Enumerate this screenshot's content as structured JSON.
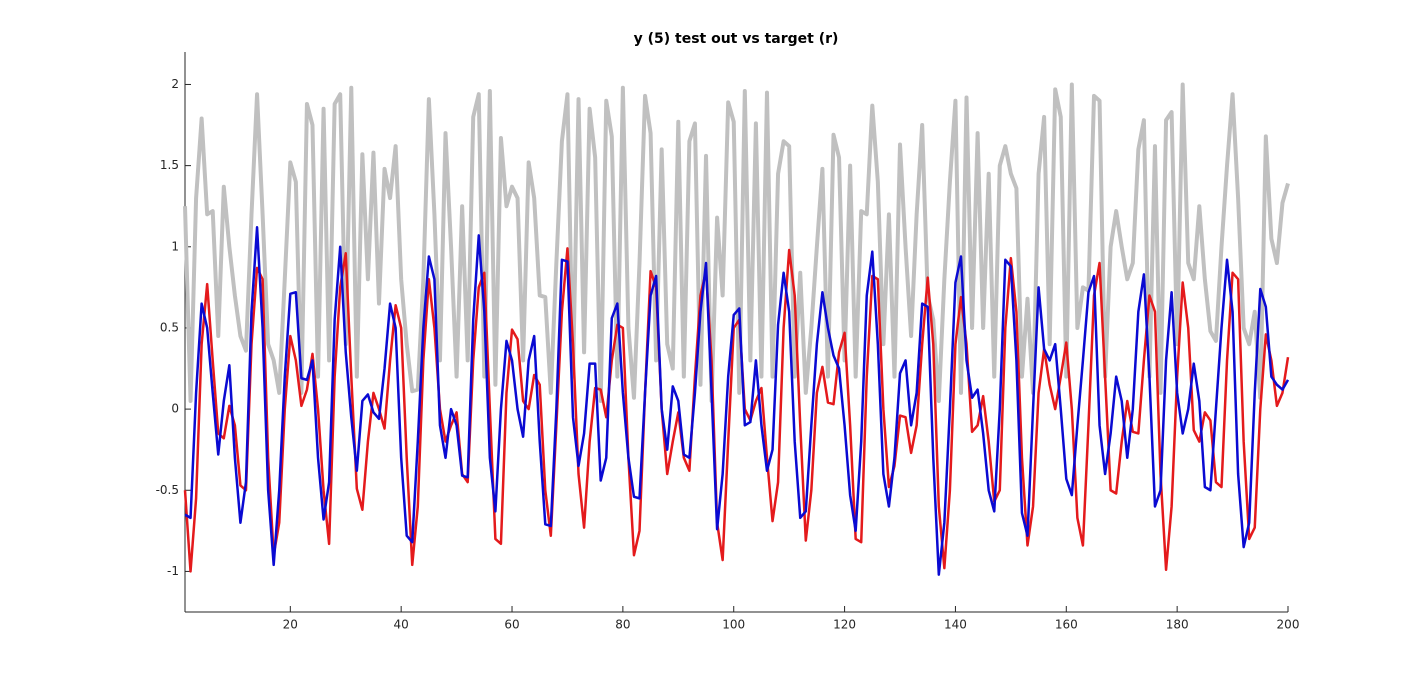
{
  "chart_data": {
    "type": "line",
    "title": "y (5) test out vs target (r)",
    "x": [
      1,
      2,
      3,
      4,
      5,
      6,
      7,
      8,
      9,
      10,
      11,
      12,
      13,
      14,
      15,
      16,
      17,
      18,
      19,
      20,
      21,
      22,
      23,
      24,
      25,
      26,
      27,
      28,
      29,
      30,
      31,
      32,
      33,
      34,
      35,
      36,
      37,
      38,
      39,
      40,
      41,
      42,
      43,
      44,
      45,
      46,
      47,
      48,
      49,
      50,
      51,
      52,
      53,
      54,
      55,
      56,
      57,
      58,
      59,
      60,
      61,
      62,
      63,
      64,
      65,
      66,
      67,
      68,
      69,
      70,
      71,
      72,
      73,
      74,
      75,
      76,
      77,
      78,
      79,
      80,
      81,
      82,
      83,
      84,
      85,
      86,
      87,
      88,
      89,
      90,
      91,
      92,
      93,
      94,
      95,
      96,
      97,
      98,
      99,
      100,
      101,
      102,
      103,
      104,
      105,
      106,
      107,
      108,
      109,
      110,
      111,
      112,
      113,
      114,
      115,
      116,
      117,
      118,
      119,
      120,
      121,
      122,
      123,
      124,
      125,
      126,
      127,
      128,
      129,
      130,
      131,
      132,
      133,
      134,
      135,
      136,
      137,
      138,
      139,
      140,
      141,
      142,
      143,
      144,
      145,
      146,
      147,
      148,
      149,
      150,
      151,
      152,
      153,
      154,
      155,
      156,
      157,
      158,
      159,
      160,
      161,
      162,
      163,
      164,
      165,
      166,
      167,
      168,
      169,
      170,
      171,
      172,
      173,
      174,
      175,
      176,
      177,
      178,
      179,
      180,
      181,
      182,
      183,
      184,
      185,
      186,
      187,
      188,
      189,
      190,
      191,
      192,
      193,
      194,
      195,
      196,
      197,
      198,
      199,
      200
    ],
    "series": [
      {
        "color": "#c0c0c0",
        "values": [
          1.25,
          0.05,
          1.3,
          1.79,
          1.2,
          1.22,
          0.45,
          1.37,
          1.0,
          0.7,
          0.45,
          0.36,
          1.2,
          1.94,
          1.2,
          0.4,
          0.3,
          0.1,
          0.8,
          1.52,
          1.4,
          0.1,
          1.88,
          1.75,
          0.2,
          1.85,
          0.3,
          1.88,
          1.94,
          0.4,
          1.98,
          0.2,
          1.57,
          0.8,
          1.58,
          0.65,
          1.48,
          1.3,
          1.62,
          0.8,
          0.4,
          0.11,
          0.12,
          0.8,
          1.91,
          1.2,
          0.3,
          1.7,
          1.0,
          0.2,
          1.25,
          0.3,
          1.8,
          1.94,
          0.2,
          1.96,
          0.15,
          1.67,
          1.25,
          1.37,
          1.3,
          0.3,
          1.52,
          1.3,
          0.7,
          0.69,
          0.1,
          0.9,
          1.65,
          1.94,
          0.2,
          1.91,
          0.35,
          1.85,
          1.55,
          0.05,
          1.9,
          1.68,
          0.2,
          1.98,
          0.5,
          0.07,
          0.9,
          1.93,
          1.7,
          0.3,
          1.6,
          0.4,
          0.25,
          1.77,
          0.2,
          1.65,
          1.76,
          0.15,
          1.56,
          0.05,
          1.18,
          0.7,
          1.89,
          1.77,
          0.1,
          1.96,
          0.3,
          1.76,
          0.2,
          1.95,
          0.2,
          1.45,
          1.65,
          1.62,
          0.2,
          0.84,
          0.1,
          0.5,
          1.0,
          1.48,
          0.2,
          1.69,
          1.55,
          0.3,
          1.5,
          0.2,
          1.22,
          1.2,
          1.87,
          1.4,
          0.4,
          1.2,
          0.2,
          1.63,
          1.0,
          0.45,
          1.2,
          1.75,
          0.7,
          0.55,
          0.05,
          0.8,
          1.4,
          1.9,
          0.1,
          1.92,
          0.5,
          1.7,
          0.5,
          1.45,
          0.2,
          1.5,
          1.62,
          1.45,
          1.36,
          0.2,
          0.68,
          0.1,
          1.45,
          1.8,
          0.4,
          1.97,
          1.8,
          0.2,
          2.0,
          0.5,
          0.75,
          0.73,
          1.93,
          1.9,
          0.2,
          1.0,
          1.22,
          1.0,
          0.8,
          0.9,
          1.6,
          1.78,
          0.2,
          1.62,
          0.1,
          1.78,
          1.83,
          0.4,
          2.0,
          0.9,
          0.8,
          1.25,
          0.8,
          0.48,
          0.42,
          1.0,
          1.5,
          1.94,
          1.3,
          0.5,
          0.4,
          0.6,
          0.07,
          1.68,
          1.05,
          0.9,
          1.27,
          1.39
        ]
      },
      {
        "color": "#e41a1c",
        "values": [
          -0.5,
          -1.0,
          -0.55,
          0.4,
          0.77,
          0.3,
          -0.15,
          -0.18,
          0.02,
          -0.1,
          -0.47,
          -0.5,
          0.4,
          0.87,
          0.8,
          -0.3,
          -0.9,
          -0.7,
          0.0,
          0.45,
          0.3,
          0.02,
          0.12,
          0.34,
          0.0,
          -0.5,
          -0.83,
          0.2,
          0.75,
          0.96,
          0.2,
          -0.49,
          -0.62,
          -0.2,
          0.1,
          0.0,
          -0.12,
          0.3,
          0.64,
          0.5,
          -0.3,
          -0.96,
          -0.6,
          0.3,
          0.8,
          0.5,
          0.0,
          -0.2,
          -0.1,
          -0.02,
          -0.4,
          -0.45,
          0.3,
          0.75,
          0.84,
          0.0,
          -0.8,
          -0.83,
          0.1,
          0.49,
          0.43,
          0.05,
          0.0,
          0.21,
          0.15,
          -0.5,
          -0.78,
          -0.1,
          0.6,
          0.99,
          0.4,
          -0.4,
          -0.73,
          -0.2,
          0.13,
          0.12,
          -0.05,
          0.3,
          0.52,
          0.5,
          -0.3,
          -0.9,
          -0.75,
          0.1,
          0.85,
          0.75,
          0.0,
          -0.4,
          -0.2,
          -0.02,
          -0.3,
          -0.38,
          0.2,
          0.7,
          0.85,
          0.3,
          -0.7,
          -0.93,
          -0.2,
          0.5,
          0.55,
          0.0,
          -0.07,
          0.05,
          0.13,
          -0.3,
          -0.69,
          -0.45,
          0.5,
          0.98,
          0.7,
          -0.1,
          -0.81,
          -0.5,
          0.1,
          0.26,
          0.04,
          0.03,
          0.35,
          0.47,
          -0.1,
          -0.8,
          -0.82,
          0.2,
          0.82,
          0.8,
          0.0,
          -0.48,
          -0.35,
          -0.04,
          -0.05,
          -0.27,
          -0.1,
          0.4,
          0.81,
          0.4,
          -0.6,
          -0.98,
          -0.5,
          0.4,
          0.69,
          0.4,
          -0.14,
          -0.1,
          0.08,
          -0.2,
          -0.57,
          -0.5,
          0.5,
          0.93,
          0.6,
          -0.3,
          -0.84,
          -0.6,
          0.1,
          0.37,
          0.15,
          0.0,
          0.2,
          0.41,
          0.0,
          -0.67,
          -0.84,
          -0.1,
          0.7,
          0.9,
          0.2,
          -0.5,
          -0.52,
          -0.2,
          0.05,
          -0.14,
          -0.15,
          0.3,
          0.7,
          0.6,
          -0.4,
          -0.99,
          -0.6,
          0.2,
          0.78,
          0.5,
          -0.13,
          -0.2,
          -0.02,
          -0.07,
          -0.45,
          -0.48,
          0.3,
          0.84,
          0.8,
          -0.2,
          -0.8,
          -0.73,
          0.0,
          0.46,
          0.3,
          0.02,
          0.1,
          0.32
        ]
      },
      {
        "color": "#0a0ad2",
        "values": [
          -0.65,
          -0.67,
          0.1,
          0.65,
          0.5,
          0.1,
          -0.28,
          0.05,
          0.27,
          -0.3,
          -0.7,
          -0.45,
          0.6,
          1.12,
          0.5,
          -0.5,
          -0.96,
          -0.5,
          0.2,
          0.71,
          0.72,
          0.19,
          0.18,
          0.3,
          -0.3,
          -0.68,
          -0.45,
          0.55,
          1.0,
          0.35,
          -0.05,
          -0.38,
          0.05,
          0.09,
          -0.02,
          -0.06,
          0.25,
          0.65,
          0.5,
          -0.3,
          -0.78,
          -0.82,
          -0.2,
          0.5,
          0.94,
          0.8,
          -0.1,
          -0.3,
          0.0,
          -0.1,
          -0.41,
          -0.42,
          0.55,
          1.07,
          0.6,
          -0.3,
          -0.63,
          0.0,
          0.42,
          0.3,
          0.0,
          -0.17,
          0.3,
          0.45,
          -0.2,
          -0.71,
          -0.72,
          0.0,
          0.92,
          0.91,
          -0.05,
          -0.35,
          -0.15,
          0.28,
          0.28,
          -0.44,
          -0.3,
          0.56,
          0.65,
          0.1,
          -0.3,
          -0.54,
          -0.55,
          0.1,
          0.7,
          0.82,
          0.0,
          -0.25,
          0.14,
          0.05,
          -0.28,
          -0.3,
          0.1,
          0.6,
          0.9,
          0.1,
          -0.74,
          -0.4,
          0.2,
          0.58,
          0.62,
          -0.1,
          -0.08,
          0.3,
          -0.1,
          -0.38,
          -0.25,
          0.52,
          0.84,
          0.6,
          -0.2,
          -0.67,
          -0.63,
          -0.1,
          0.4,
          0.72,
          0.5,
          0.33,
          0.25,
          -0.1,
          -0.53,
          -0.75,
          -0.2,
          0.7,
          0.97,
          0.4,
          -0.4,
          -0.6,
          -0.3,
          0.22,
          0.3,
          -0.1,
          0.1,
          0.65,
          0.63,
          -0.3,
          -1.02,
          -0.7,
          0.0,
          0.78,
          0.94,
          0.3,
          0.07,
          0.12,
          -0.15,
          -0.5,
          -0.63,
          0.0,
          0.92,
          0.88,
          0.3,
          -0.64,
          -0.78,
          0.0,
          0.75,
          0.37,
          0.3,
          0.4,
          0.0,
          -0.43,
          -0.53,
          -0.1,
          0.3,
          0.72,
          0.82,
          -0.1,
          -0.4,
          -0.15,
          0.2,
          0.05,
          -0.3,
          0.0,
          0.6,
          0.83,
          0.2,
          -0.6,
          -0.5,
          0.3,
          0.72,
          0.1,
          -0.15,
          0.0,
          0.28,
          0.05,
          -0.48,
          -0.5,
          0.0,
          0.5,
          0.92,
          0.6,
          -0.4,
          -0.85,
          -0.7,
          0.1,
          0.74,
          0.63,
          0.2,
          0.15,
          0.12,
          0.18
        ]
      }
    ],
    "xlim": [
      1,
      200
    ],
    "xticks": [
      20,
      40,
      60,
      80,
      100,
      120,
      140,
      160,
      180,
      200
    ],
    "ylim": [
      -1.25,
      2.2
    ],
    "yticks": [
      -1,
      -0.5,
      0,
      0.5,
      1,
      1.5,
      2
    ]
  }
}
